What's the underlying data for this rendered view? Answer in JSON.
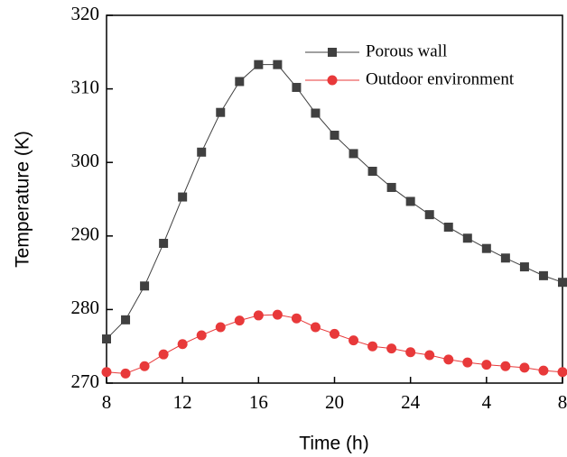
{
  "chart_data": {
    "type": "line",
    "x_label": "Time (h)",
    "y_label": "Temperature (K)",
    "x": [
      8,
      9,
      10,
      11,
      12,
      13,
      14,
      15,
      16,
      17,
      18,
      19,
      20,
      21,
      22,
      23,
      24,
      25,
      26,
      27,
      28,
      29,
      30,
      31,
      32
    ],
    "series": [
      {
        "name": "Porous wall",
        "color": "#404040",
        "marker": "square",
        "values": [
          276,
          278.6,
          283.2,
          289,
          295.3,
          301.4,
          306.8,
          311,
          313.3,
          313.3,
          310.2,
          306.7,
          303.7,
          301.2,
          298.8,
          296.6,
          294.7,
          292.9,
          291.2,
          289.7,
          288.3,
          287,
          285.8,
          284.6,
          283.7
        ]
      },
      {
        "name": "Outdoor environment",
        "color": "#e8393a",
        "marker": "circle",
        "values": [
          271.5,
          271.3,
          272.3,
          273.9,
          275.3,
          276.5,
          277.6,
          278.5,
          279.2,
          279.3,
          278.8,
          277.6,
          276.7,
          275.8,
          275,
          274.7,
          274.2,
          273.8,
          273.2,
          272.8,
          272.5,
          272.3,
          272.1,
          271.7,
          271.5
        ]
      }
    ],
    "xlim": [
      8,
      32
    ],
    "xticks": [
      8,
      12,
      16,
      20,
      24,
      {
        "value": 28,
        "label": "4"
      },
      {
        "value": 32,
        "label": "8"
      }
    ],
    "ylim": [
      270,
      320
    ],
    "yticks": [
      270,
      280,
      290,
      300,
      310,
      320
    ],
    "legend": "upper right"
  }
}
